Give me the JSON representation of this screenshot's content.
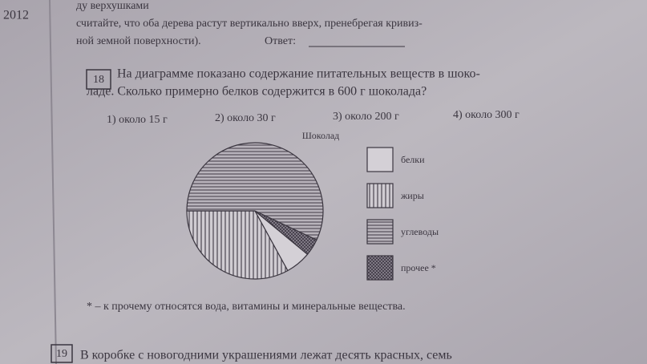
{
  "margin": {
    "year": "2012"
  },
  "previous_task": {
    "lines": [
      "ду верхушками",
      "считайте, что оба дерева растут вертикально вверх, пренебрегая кривиз-",
      "ной земной поверхности)."
    ],
    "answer_label": "Ответ:"
  },
  "task_18": {
    "number": "18",
    "lines": [
      "На диаграмме показано содержание питательных веществ в шоко-",
      "ладе. Сколько примерно белков содержится в 600 г шоколада?"
    ],
    "options": [
      "1) около 15 г",
      "2) около 30 г",
      "3) около 200 г",
      "4) около 300 г"
    ]
  },
  "chart_data": {
    "type": "pie",
    "title": "Шоколад",
    "categories": [
      "белки",
      "жиры",
      "углеводы",
      "прочее *"
    ],
    "values": [
      6,
      33,
      57,
      4
    ]
  },
  "footnote": "* – к прочему относятся вода, витамины и минеральные вещества.",
  "task_19": {
    "number": "19",
    "line": "В коробке с новогодними украшениями лежат десять красных, семь"
  }
}
